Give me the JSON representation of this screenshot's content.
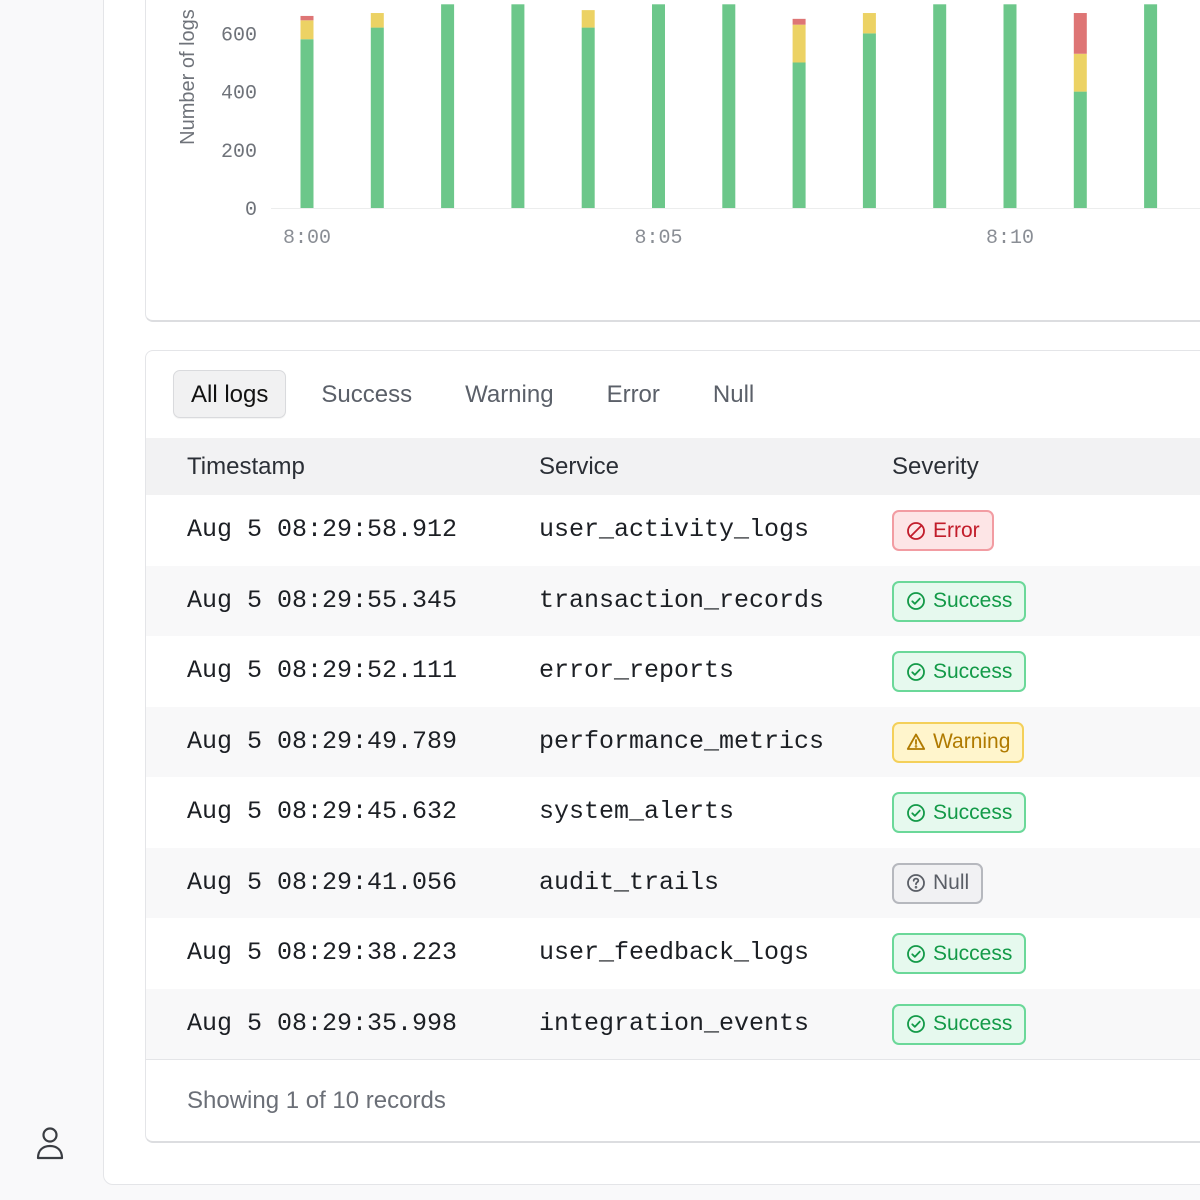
{
  "chart_data": {
    "type": "bar",
    "stacked": true,
    "ylabel": "Number of logs",
    "y_ticks": [
      "0",
      "200",
      "400",
      "600"
    ],
    "ylim": [
      0,
      700
    ],
    "x_tick_labels": [
      "8:00",
      "8:05",
      "8:10"
    ],
    "categories": [
      "8:00",
      "8:01",
      "8:02",
      "8:03",
      "8:04",
      "8:05",
      "8:06",
      "8:07",
      "8:08",
      "8:09",
      "8:10",
      "8:11",
      "8:12"
    ],
    "series": [
      {
        "key": "success",
        "color": "#6cc78a",
        "values": [
          580,
          620,
          700,
          700,
          620,
          700,
          700,
          500,
          600,
          700,
          700,
          400,
          700
        ]
      },
      {
        "key": "warning",
        "color": "#ecd264",
        "values": [
          65,
          50,
          0,
          0,
          60,
          0,
          0,
          130,
          70,
          0,
          0,
          130,
          0
        ]
      },
      {
        "key": "error",
        "color": "#de7575",
        "values": [
          15,
          0,
          0,
          0,
          0,
          0,
          0,
          20,
          0,
          0,
          0,
          140,
          0
        ]
      }
    ],
    "grid": false
  },
  "tabs": [
    {
      "label": "All logs",
      "active": true
    },
    {
      "label": "Success",
      "active": false
    },
    {
      "label": "Warning",
      "active": false
    },
    {
      "label": "Error",
      "active": false
    },
    {
      "label": "Null",
      "active": false
    }
  ],
  "table": {
    "columns": [
      "Timestamp",
      "Service",
      "Severity"
    ],
    "rows": [
      {
        "timestamp": "Aug 5 08:29:58.912",
        "service": "user_activity_logs",
        "severity": "Error",
        "status": "error"
      },
      {
        "timestamp": "Aug 5 08:29:55.345",
        "service": "transaction_records",
        "severity": "Success",
        "status": "success"
      },
      {
        "timestamp": "Aug 5 08:29:52.111",
        "service": "error_reports",
        "severity": "Success",
        "status": "success"
      },
      {
        "timestamp": "Aug 5 08:29:49.789",
        "service": "performance_metrics",
        "severity": "Warning",
        "status": "warning"
      },
      {
        "timestamp": "Aug 5 08:29:45.632",
        "service": "system_alerts",
        "severity": "Success",
        "status": "success"
      },
      {
        "timestamp": "Aug 5 08:29:41.056",
        "service": "audit_trails",
        "severity": "Null",
        "status": "null"
      },
      {
        "timestamp": "Aug 5 08:29:38.223",
        "service": "user_feedback_logs",
        "severity": "Success",
        "status": "success"
      },
      {
        "timestamp": "Aug 5 08:29:35.998",
        "service": "integration_events",
        "severity": "Success",
        "status": "success"
      }
    ]
  },
  "footer": {
    "text": "Showing 1 of 10 records"
  },
  "icons": {
    "user": "user-icon",
    "error": "ban-icon",
    "success": "check-circle-icon",
    "warning": "warning-triangle-icon",
    "null": "question-circle-icon"
  }
}
